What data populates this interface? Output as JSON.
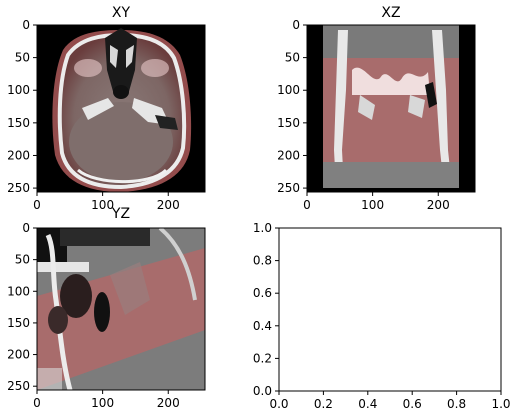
{
  "chart_data": [
    {
      "type": "heatmap",
      "title": "XY",
      "image": "ct-axial-slice-with-red-overlay",
      "xlim": [
        0,
        256
      ],
      "ylim": [
        256,
        0
      ],
      "xticks": [
        "0",
        "100",
        "200"
      ],
      "xtick_values": [
        0,
        100,
        200
      ],
      "yticks": [
        "0",
        "50",
        "100",
        "150",
        "200",
        "250"
      ],
      "ytick_values": [
        0,
        50,
        100,
        150,
        200,
        250
      ]
    },
    {
      "type": "heatmap",
      "title": "XZ",
      "image": "ct-coronal-slice-with-red-overlay",
      "xlim": [
        0,
        256
      ],
      "ylim": [
        256,
        0
      ],
      "xticks": [
        "0",
        "100",
        "200"
      ],
      "xtick_values": [
        0,
        100,
        200
      ],
      "yticks": [
        "0",
        "50",
        "100",
        "150",
        "200",
        "250"
      ],
      "ytick_values": [
        0,
        50,
        100,
        150,
        200,
        250
      ]
    },
    {
      "type": "heatmap",
      "title": "YZ",
      "image": "ct-sagittal-slice-with-red-overlay",
      "xlim": [
        0,
        256
      ],
      "ylim": [
        256,
        0
      ],
      "xticks": [
        "0",
        "100",
        "200"
      ],
      "xtick_values": [
        0,
        100,
        200
      ],
      "yticks": [
        "0",
        "50",
        "100",
        "150",
        "200",
        "250"
      ],
      "ytick_values": [
        0,
        50,
        100,
        150,
        200,
        250
      ]
    },
    {
      "type": "line",
      "title": "",
      "series": [],
      "xlim": [
        0.0,
        1.0
      ],
      "ylim": [
        0.0,
        1.0
      ],
      "xticks": [
        "0.0",
        "0.2",
        "0.4",
        "0.6",
        "0.8",
        "1.0"
      ],
      "xtick_values": [
        0,
        0.2,
        0.4,
        0.6,
        0.8,
        1.0
      ],
      "yticks": [
        "0.0",
        "0.2",
        "0.4",
        "0.6",
        "0.8",
        "1.0"
      ],
      "ytick_values": [
        0,
        0.2,
        0.4,
        0.6,
        0.8,
        1.0
      ]
    }
  ],
  "colors": {
    "overlay": "#d9534f",
    "bone": "#f2f2f2",
    "background": "#000000"
  }
}
